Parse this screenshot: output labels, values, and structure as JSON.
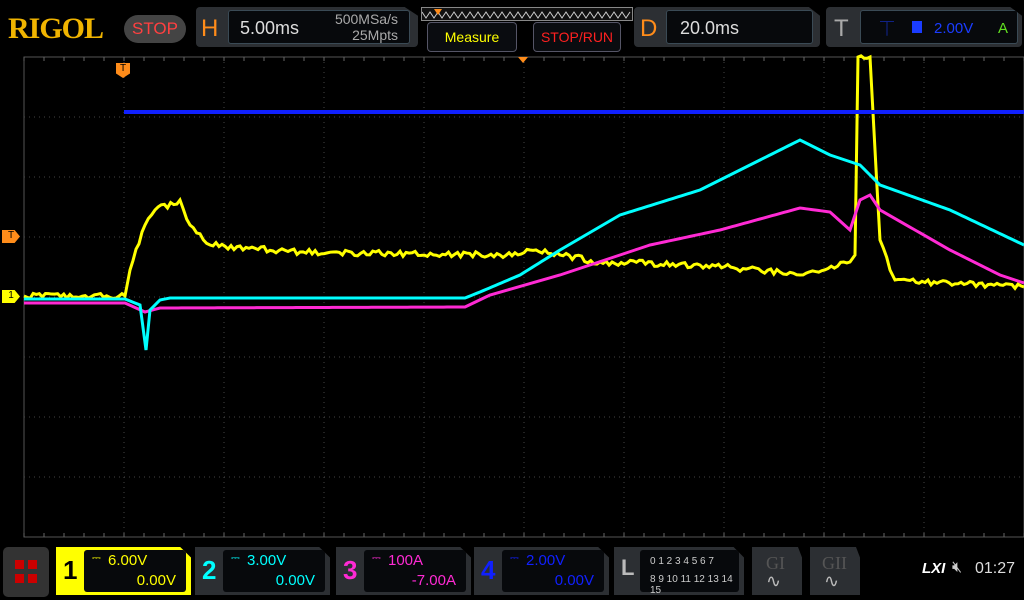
{
  "brand": "RIGOL",
  "run_state": "STOP",
  "horizontal": {
    "label": "H",
    "timebase": "5.00ms",
    "sample_rate": "500MSa/s",
    "memory_depth": "25Mpts"
  },
  "buttons": {
    "measure": "Measure",
    "stop_run": "STOP/RUN"
  },
  "delay": {
    "label": "D",
    "value": "20.0ms"
  },
  "trigger": {
    "label": "T",
    "source_icon": "ch4-icon",
    "level": "2.00V",
    "mode": "A",
    "marker": "T"
  },
  "channels": [
    {
      "num": "1",
      "scale": "6.00V",
      "offset": "0.00V",
      "color": "#ffff00"
    },
    {
      "num": "2",
      "scale": "3.00V",
      "offset": "0.00V",
      "color": "#00ffff"
    },
    {
      "num": "3",
      "scale": "100A",
      "offset": "-7.00A",
      "color": "#ff2ad4"
    },
    {
      "num": "4",
      "scale": "2.00V",
      "offset": "0.00V",
      "color": "#1020ff"
    }
  ],
  "logic": {
    "label": "L",
    "row1": "0 1 2 3  4 5 6 7",
    "row2": "8 9 10 11 12 13 14 15"
  },
  "generators": [
    {
      "label": "GI"
    },
    {
      "label": "GII"
    }
  ],
  "status": {
    "lxi": "LXI",
    "time": "01:27"
  }
}
